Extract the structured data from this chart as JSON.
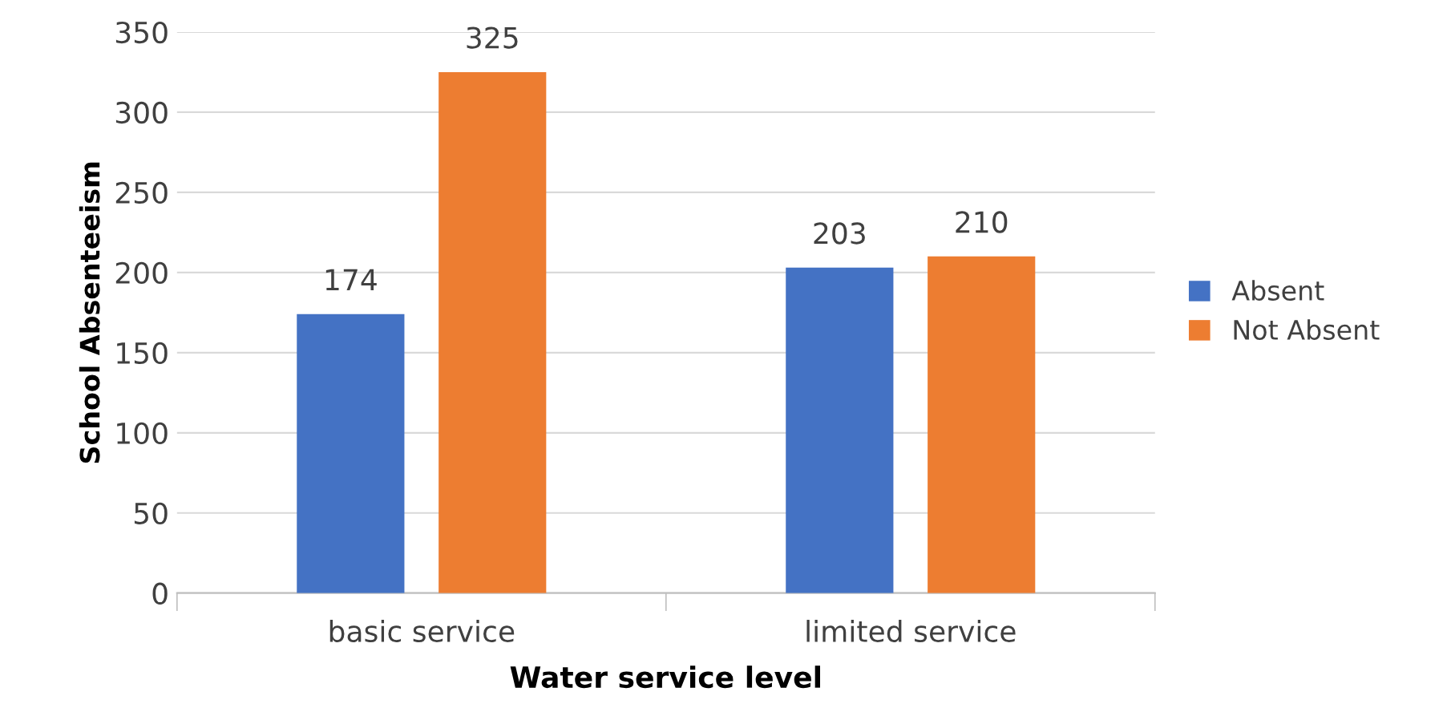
{
  "chart_data": {
    "type": "bar",
    "xlabel": "Water service level",
    "ylabel": "School Absenteeism",
    "categories": [
      "basic service",
      "limited service"
    ],
    "series": [
      {
        "name": "Absent",
        "color": "#4472c4",
        "values": [
          174,
          203
        ]
      },
      {
        "name": "Not Absent",
        "color": "#ed7d31",
        "values": [
          325,
          210
        ]
      }
    ],
    "ylim": [
      0,
      350
    ],
    "yticks": [
      0,
      50,
      100,
      150,
      200,
      250,
      300,
      350
    ],
    "grid": "y",
    "legend": "right",
    "data_labels": true
  }
}
